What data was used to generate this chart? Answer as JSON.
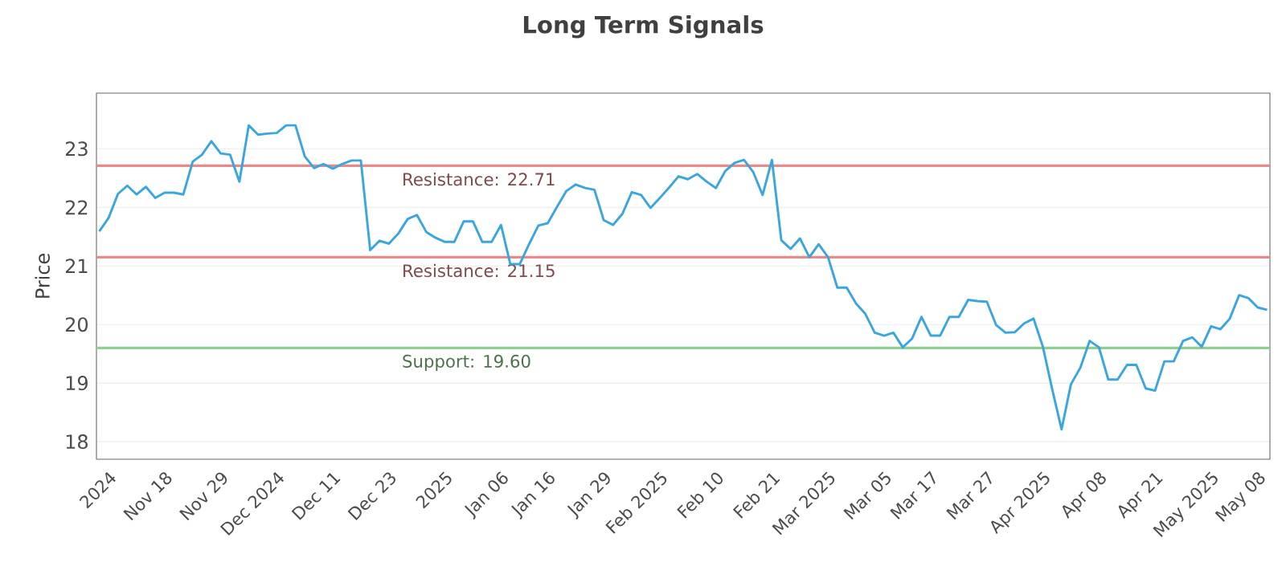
{
  "chart_data": {
    "type": "line",
    "title": "Long Term Signals",
    "ylabel": "Price",
    "categories": [
      null,
      "2024",
      null,
      null,
      null,
      null,
      null,
      "Nov 18",
      null,
      null,
      null,
      null,
      null,
      "Nov 29",
      null,
      null,
      null,
      null,
      null,
      "Dec 2024",
      null,
      null,
      null,
      null,
      null,
      "Dec 11",
      null,
      null,
      null,
      null,
      null,
      "Dec 23",
      null,
      null,
      null,
      null,
      null,
      "2025",
      null,
      null,
      null,
      null,
      null,
      "Jan 06",
      null,
      null,
      null,
      null,
      "Jan 16",
      null,
      null,
      null,
      null,
      null,
      "Jan 29",
      null,
      null,
      null,
      null,
      null,
      "Feb 2025",
      null,
      null,
      null,
      null,
      null,
      "Feb 10",
      null,
      null,
      null,
      null,
      null,
      "Feb 21",
      null,
      null,
      null,
      null,
      null,
      "Mar 2025",
      null,
      null,
      null,
      null,
      null,
      "Mar 05",
      null,
      null,
      null,
      null,
      "Mar 17",
      null,
      null,
      null,
      null,
      null,
      "Mar 27",
      null,
      null,
      null,
      null,
      null,
      "Apr 2025",
      null,
      null,
      null,
      null,
      null,
      "Apr 08",
      null,
      null,
      null,
      null,
      null,
      "Apr 21",
      null,
      null,
      null,
      null,
      null,
      "May 2025",
      null,
      null,
      null,
      null,
      "May 08",
      null
    ],
    "series": [
      {
        "color": "#3aa6e0",
        "values": [
          21.59,
          21.82,
          22.23,
          22.37,
          22.22,
          22.35,
          22.16,
          22.25,
          22.25,
          22.22,
          22.78,
          22.9,
          23.13,
          22.92,
          22.9,
          22.44,
          23.4,
          23.24,
          23.26,
          23.27,
          23.4,
          23.4,
          22.87,
          22.67,
          22.74,
          22.66,
          22.74,
          22.8,
          22.8,
          21.27,
          21.43,
          21.38,
          21.55,
          21.8,
          21.87,
          21.58,
          21.48,
          21.41,
          21.41,
          21.76,
          21.76,
          21.41,
          21.41,
          21.7,
          21.03,
          21.03,
          21.37,
          21.69,
          21.73,
          22.01,
          22.28,
          22.39,
          22.33,
          22.3,
          21.78,
          21.7,
          21.89,
          22.26,
          22.21,
          21.99,
          22.16,
          22.34,
          22.53,
          22.48,
          22.57,
          22.44,
          22.33,
          22.62,
          22.76,
          22.81,
          22.6,
          22.21,
          22.81,
          21.44,
          21.29,
          21.47,
          21.15,
          21.37,
          21.15,
          20.63,
          20.63,
          20.36,
          20.18,
          19.86,
          19.81,
          19.86,
          19.61,
          19.76,
          20.13,
          19.81,
          19.81,
          20.13,
          20.13,
          20.42,
          20.4,
          20.39,
          19.99,
          19.86,
          19.87,
          20.02,
          20.1,
          19.62,
          18.89,
          18.21,
          18.98,
          19.26,
          19.72,
          19.61,
          19.06,
          19.06,
          19.31,
          19.31,
          18.91,
          18.87,
          19.37,
          19.37,
          19.72,
          19.78,
          19.62,
          19.97,
          19.92,
          20.1,
          20.5,
          20.45,
          20.29,
          20.25
        ]
      }
    ],
    "ylim": [
      17.7,
      23.95
    ],
    "yticks": [
      18,
      19,
      20,
      21,
      22,
      23
    ],
    "grid": "y",
    "marker": "none",
    "line_style": "solid",
    "ref_lines": [
      {
        "axis": "y",
        "value": 22.71,
        "label": "Resistance: 22.71",
        "color": "#e88a8a"
      },
      {
        "axis": "y",
        "value": 21.15,
        "label": "Resistance: 21.15",
        "color": "#e88a8a"
      },
      {
        "axis": "y",
        "value": 19.6,
        "label": "Support: 19.60",
        "color": "#8fcf8f"
      }
    ]
  }
}
